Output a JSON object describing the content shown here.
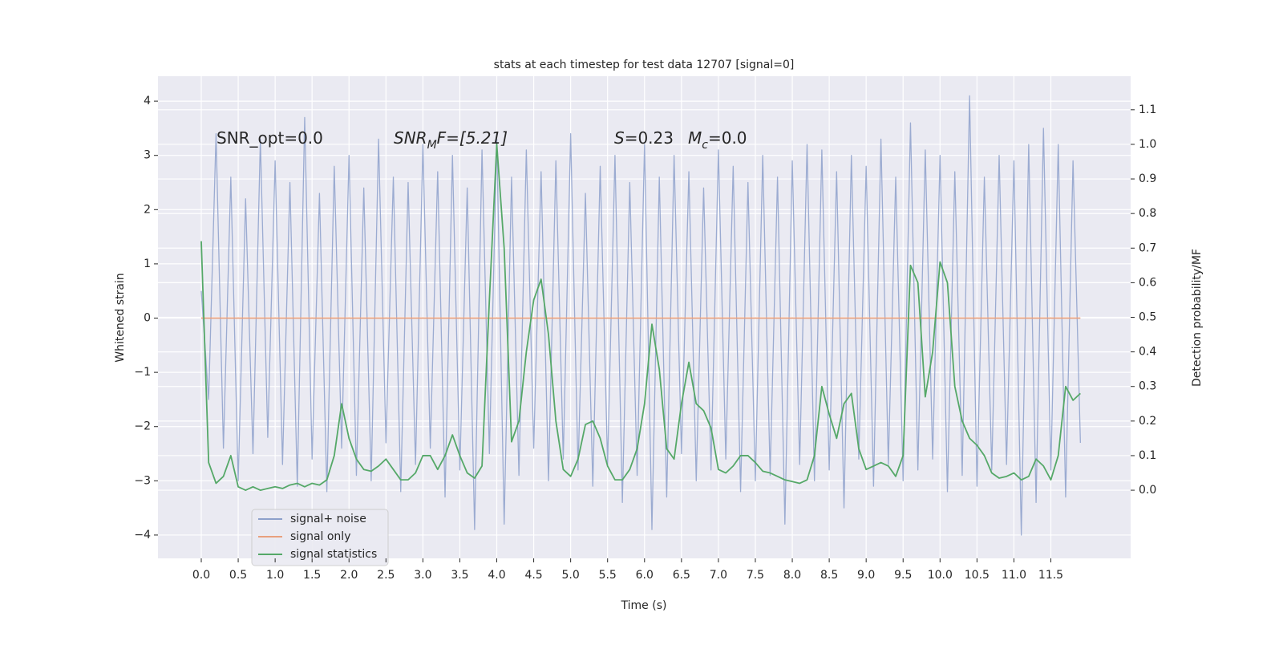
{
  "chart_data": {
    "type": "line",
    "title": "stats at each timestep for test data 12707 [signal=0]",
    "x_label": "Time (s)",
    "y_label": "Whitened strain",
    "y2_label": "Detection probability/MF",
    "annotations": [
      {
        "parts": [
          "SNR_opt=0.0"
        ]
      },
      {
        "parts": [
          "SNR",
          "M",
          "F=[5.21]"
        ]
      },
      {
        "parts": [
          "S",
          "=0.23"
        ]
      },
      {
        "parts": [
          "M",
          "c",
          "=0.0"
        ]
      }
    ],
    "x": [
      0,
      0.1,
      0.2,
      0.3,
      0.4,
      0.5,
      0.6,
      0.7,
      0.8,
      0.9,
      1,
      1.1,
      1.2,
      1.3,
      1.4,
      1.5,
      1.6,
      1.7,
      1.8,
      1.9,
      2,
      2.1,
      2.2,
      2.3,
      2.4,
      2.5,
      2.6,
      2.7,
      2.8,
      2.9,
      3,
      3.1,
      3.2,
      3.3,
      3.4,
      3.5,
      3.6,
      3.7,
      3.8,
      3.9,
      4,
      4.1,
      4.2,
      4.3,
      4.4,
      4.5,
      4.6,
      4.7,
      4.8,
      4.9,
      5,
      5.1,
      5.2,
      5.3,
      5.4,
      5.5,
      5.6,
      5.7,
      5.8,
      5.9,
      6,
      6.1,
      6.2,
      6.3,
      6.4,
      6.5,
      6.6,
      6.7,
      6.8,
      6.9,
      7,
      7.1,
      7.2,
      7.3,
      7.4,
      7.5,
      7.6,
      7.7,
      7.8,
      7.9,
      8,
      8.1,
      8.2,
      8.3,
      8.4,
      8.5,
      8.6,
      8.7,
      8.8,
      8.9,
      9,
      9.1,
      9.2,
      9.3,
      9.4,
      9.5,
      9.6,
      9.7,
      9.8,
      9.9,
      10,
      10.1,
      10.2,
      10.3,
      10.4,
      10.5,
      10.6,
      10.7,
      10.8,
      10.9,
      11,
      11.1,
      11.2,
      11.3,
      11.4,
      11.5,
      11.6,
      11.7,
      11.8,
      11.9
    ],
    "series": [
      {
        "name": "signal+ noise",
        "color": "#8da0cb",
        "values": [
          0.5,
          -1.5,
          3.4,
          -2.4,
          2.6,
          -3.0,
          2.2,
          -2.5,
          3.3,
          -2.2,
          2.9,
          -2.7,
          2.5,
          -3.1,
          3.7,
          -2.6,
          2.3,
          -3.2,
          2.8,
          -2.4,
          3.0,
          -2.9,
          2.4,
          -3.0,
          3.3,
          -2.3,
          2.6,
          -3.2,
          2.5,
          -2.7,
          3.2,
          -2.4,
          2.7,
          -3.3,
          3.0,
          -2.8,
          2.4,
          -3.9,
          3.1,
          -2.5,
          3.3,
          -3.8,
          2.6,
          -2.9,
          3.1,
          -2.4,
          2.7,
          -3.0,
          2.9,
          -2.6,
          3.4,
          -2.8,
          2.3,
          -3.1,
          2.8,
          -2.7,
          3.0,
          -3.4,
          2.5,
          -2.9,
          3.2,
          -3.9,
          2.6,
          -3.3,
          3.0,
          -2.5,
          2.7,
          -3.0,
          2.4,
          -2.8,
          3.1,
          -2.6,
          2.8,
          -3.2,
          2.5,
          -3.0,
          3.0,
          -2.9,
          2.6,
          -3.8,
          2.9,
          -2.7,
          3.2,
          -3.0,
          3.1,
          -2.8,
          2.7,
          -3.5,
          3.0,
          -2.6,
          2.8,
          -3.1,
          3.3,
          -2.7,
          2.6,
          -3.0,
          3.6,
          -2.8,
          3.1,
          -2.6,
          3.0,
          -3.2,
          2.7,
          -2.9,
          4.1,
          -3.1,
          2.6,
          -2.8,
          3.0,
          -2.7,
          2.9,
          -4.0,
          3.2,
          -3.4,
          3.5,
          -2.8,
          3.2,
          -3.3,
          2.9,
          -2.3
        ]
      },
      {
        "name": "signal only",
        "color": "#e8a07e",
        "x": [
          0,
          11.9
        ],
        "values": [
          0,
          0
        ]
      },
      {
        "name": "signal statistics",
        "color": "#55a868",
        "axis": "y2",
        "values": [
          0.72,
          0.08,
          0.02,
          0.04,
          0.1,
          0.01,
          0.0,
          0.01,
          0.0,
          0.005,
          0.01,
          0.005,
          0.015,
          0.02,
          0.01,
          0.02,
          0.015,
          0.03,
          0.1,
          0.25,
          0.15,
          0.09,
          0.06,
          0.055,
          0.07,
          0.09,
          0.06,
          0.03,
          0.03,
          0.05,
          0.1,
          0.1,
          0.06,
          0.1,
          0.16,
          0.1,
          0.05,
          0.035,
          0.07,
          0.55,
          1.0,
          0.7,
          0.14,
          0.2,
          0.4,
          0.55,
          0.61,
          0.45,
          0.2,
          0.06,
          0.04,
          0.09,
          0.19,
          0.2,
          0.15,
          0.07,
          0.03,
          0.03,
          0.06,
          0.12,
          0.25,
          0.48,
          0.35,
          0.12,
          0.09,
          0.25,
          0.37,
          0.25,
          0.23,
          0.18,
          0.06,
          0.05,
          0.07,
          0.1,
          0.1,
          0.08,
          0.055,
          0.05,
          0.04,
          0.03,
          0.025,
          0.02,
          0.03,
          0.1,
          0.3,
          0.22,
          0.15,
          0.25,
          0.28,
          0.12,
          0.06,
          0.07,
          0.08,
          0.07,
          0.04,
          0.1,
          0.65,
          0.6,
          0.27,
          0.4,
          0.66,
          0.6,
          0.3,
          0.2,
          0.15,
          0.13,
          0.1,
          0.05,
          0.035,
          0.04,
          0.05,
          0.03,
          0.04,
          0.09,
          0.07,
          0.03,
          0.1,
          0.3,
          0.26,
          0.28
        ]
      }
    ],
    "xlim": [
      -0.586,
      12.58
    ],
    "xticks": [
      {
        "value": 0,
        "label": "0.0"
      },
      0.5,
      {
        "value": 1,
        "label": "1.0"
      },
      1.5,
      {
        "value": 2,
        "label": "2.0"
      },
      2.5,
      {
        "value": 3,
        "label": "3.0"
      },
      3.5,
      {
        "value": 4,
        "label": "4.0"
      },
      4.5,
      {
        "value": 5,
        "label": "5.0"
      },
      5.5,
      {
        "value": 6,
        "label": "6.0"
      },
      6.5,
      {
        "value": 7,
        "label": "7.0"
      },
      7.5,
      {
        "value": 8,
        "label": "8.0"
      },
      8.5,
      {
        "value": 9,
        "label": "9.0"
      },
      9.5,
      {
        "value": 10,
        "label": "10.0"
      },
      10.5,
      {
        "value": 11,
        "label": "11.0"
      },
      11.5
    ],
    "ylim": [
      -4.43,
      4.46
    ],
    "yticks": [
      {
        "value": -4,
        "label": "−4"
      },
      {
        "value": -3,
        "label": "−3"
      },
      {
        "value": -2,
        "label": "−2"
      },
      {
        "value": -1,
        "label": "−1"
      },
      0,
      1,
      2,
      3,
      4
    ],
    "y2lim": [
      -0.197,
      1.197
    ],
    "y2ticks": [
      {
        "value": 0,
        "label": "0.0"
      },
      0.1,
      0.2,
      0.3,
      0.4,
      0.5,
      0.6,
      0.7,
      0.8,
      0.9,
      {
        "value": 1,
        "label": "1.0"
      },
      1.1
    ],
    "grid": true,
    "legend": "lower left"
  }
}
